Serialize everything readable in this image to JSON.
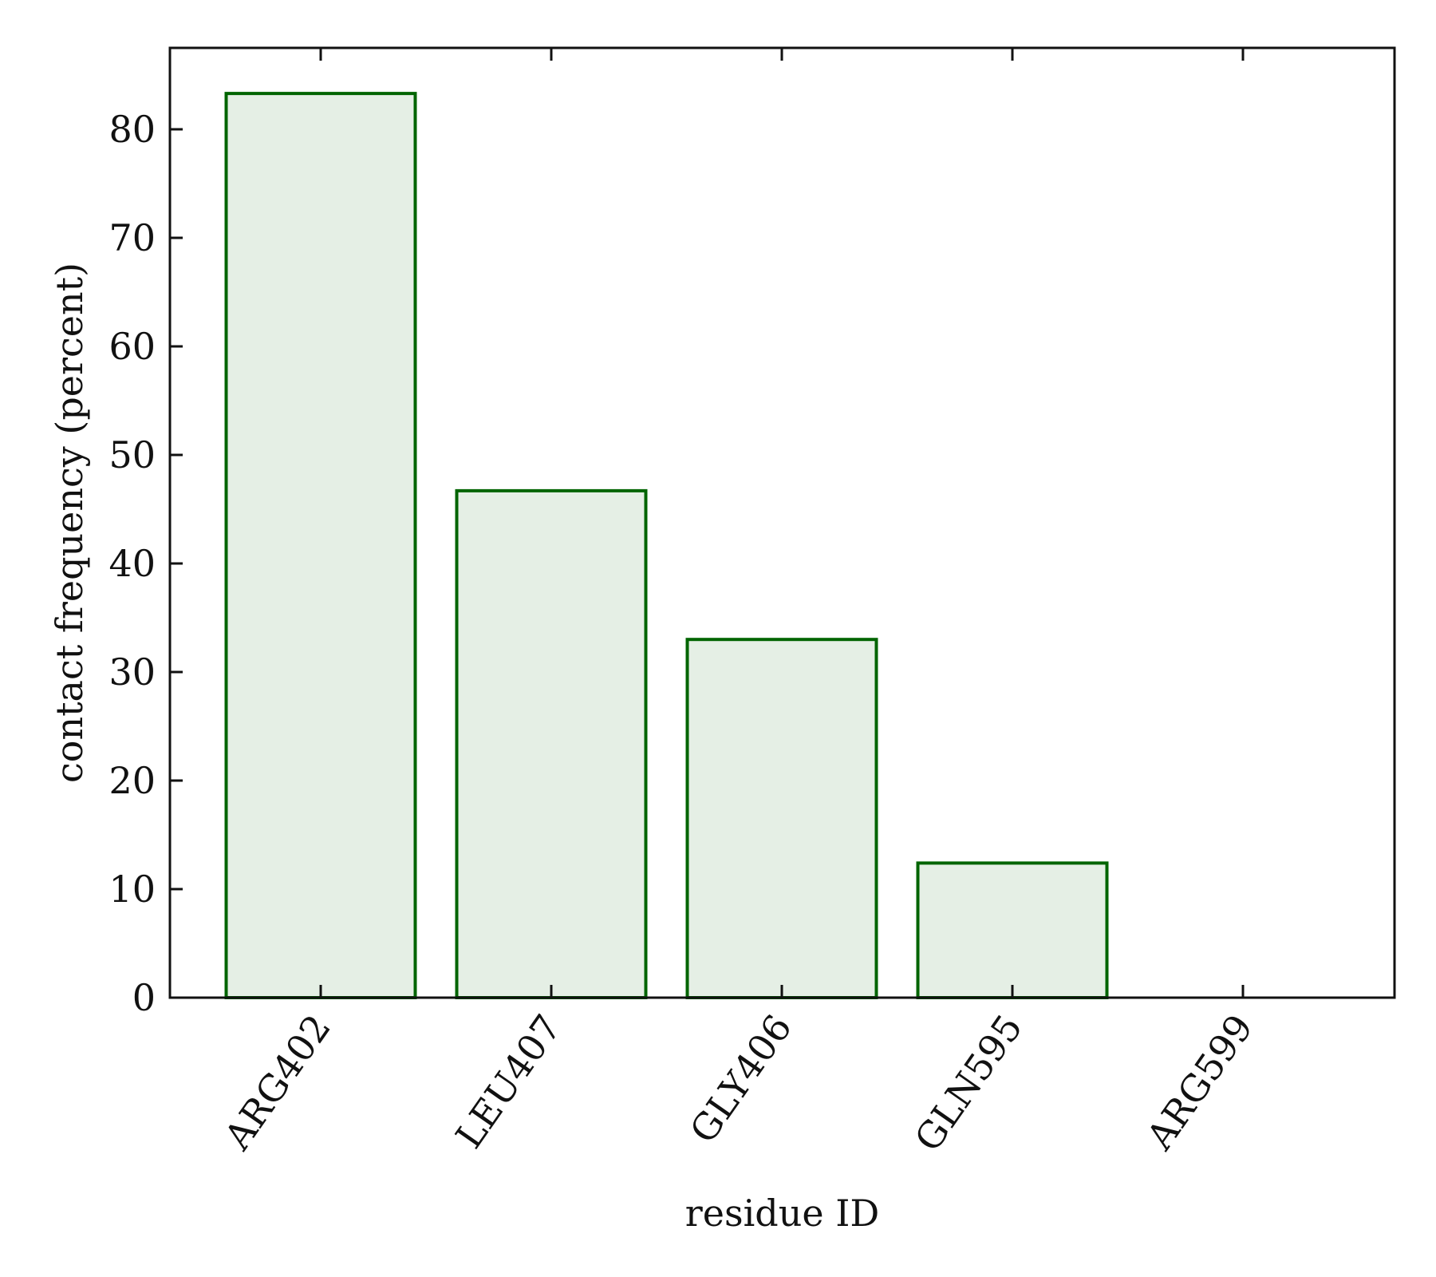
{
  "chart_data": {
    "type": "bar",
    "categories": [
      "ARG402",
      "LEU407",
      "GLY406",
      "GLN595",
      "ARG599"
    ],
    "values": [
      83.3,
      46.7,
      33.0,
      12.4,
      0.0
    ],
    "xlabel": "residue ID",
    "ylabel": "contact frequency (percent)",
    "ylim": [
      0,
      87.5
    ],
    "yticks": [
      0,
      10,
      20,
      30,
      40,
      50,
      60,
      70,
      80
    ],
    "grid": false,
    "legend": "none",
    "colors": {
      "bar_edge": "#006400",
      "bar_fill": "#e5efe5",
      "axis": "#111111"
    }
  }
}
